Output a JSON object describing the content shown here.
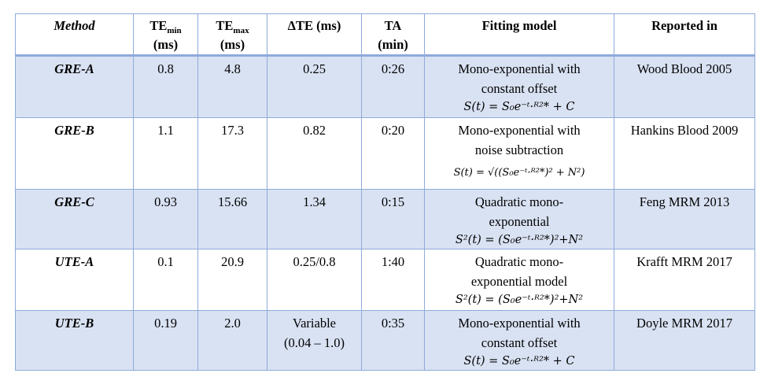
{
  "table": {
    "headers": {
      "method": "Method",
      "te_min": "TE",
      "te_min_sub": "min",
      "te_min_unit": "(ms)",
      "te_max": "TE",
      "te_max_sub": "max",
      "te_max_unit": "(ms)",
      "delta_te": "ΔTE (ms)",
      "ta": "TA",
      "ta_unit": "(min)",
      "model": "Fitting model",
      "reported": "Reported in"
    },
    "rows": [
      {
        "method": "GRE-A",
        "te_min": "0.8",
        "te_max": "4.8",
        "delta_te": "0.25",
        "delta_te_2": "",
        "ta": "0:26",
        "model_line1": "Mono-exponential with",
        "model_line2": "constant offset",
        "formula": "S(t) = S₀e⁻ᵗ·ᴿ²* + C",
        "reported": "Wood Blood 2005"
      },
      {
        "method": "GRE-B",
        "te_min": "1.1",
        "te_max": "17.3",
        "delta_te": "0.82",
        "delta_te_2": "",
        "ta": "0:20",
        "model_line1": "Mono-exponential with",
        "model_line2": "noise subtraction",
        "formula": "S(t) = √((S₀e⁻ᵗ·ᴿ²*)² + N²)",
        "reported": "Hankins Blood 2009"
      },
      {
        "method": "GRE-C",
        "te_min": "0.93",
        "te_max": "15.66",
        "delta_te": "1.34",
        "delta_te_2": "",
        "ta": "0:15",
        "model_line1": "Quadratic mono-",
        "model_line2": "exponential",
        "formula": "S²(t) = (S₀e⁻ᵗ·ᴿ²*)²+N²",
        "reported": "Feng MRM 2013"
      },
      {
        "method": "UTE-A",
        "te_min": "0.1",
        "te_max": "20.9",
        "delta_te": "0.25/0.8",
        "delta_te_2": "",
        "ta": "1:40",
        "model_line1": "Quadratic mono-",
        "model_line2": "exponential model",
        "formula": "S²(t) = (S₀e⁻ᵗ·ᴿ²*)²+N²",
        "reported": "Krafft MRM 2017"
      },
      {
        "method": "UTE-B",
        "te_min": "0.19",
        "te_max": "2.0",
        "delta_te": "Variable",
        "delta_te_2": "(0.04 – 1.0)",
        "ta": "0:35",
        "model_line1": "Mono-exponential with",
        "model_line2": "constant offset",
        "formula": "S(t) = S₀e⁻ᵗ·ᴿ²* + C",
        "reported": "Doyle MRM 2017"
      }
    ]
  }
}
